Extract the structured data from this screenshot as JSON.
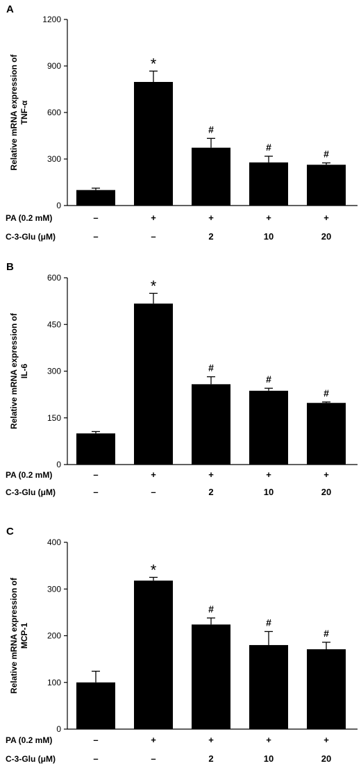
{
  "chart_data": [
    {
      "panel": "A",
      "type": "bar",
      "categories": [
        "1",
        "2",
        "3",
        "4",
        "5"
      ],
      "values": [
        100,
        797,
        373,
        278,
        263
      ],
      "errors": [
        12,
        70,
        60,
        40,
        12
      ],
      "annotations": [
        "",
        "*",
        "#",
        "#",
        "#"
      ],
      "ylabel": [
        "Relative mRNA expression of",
        "TNF-α"
      ],
      "ylim": [
        0,
        1200
      ],
      "yticks": [
        0,
        300,
        600,
        900,
        1200
      ],
      "conditions": [
        {
          "label": "PA (0.2 mM)",
          "values": [
            "–",
            "+",
            "+",
            "+",
            "+"
          ]
        },
        {
          "label": "C-3-Glu (μM)",
          "values": [
            "–",
            "–",
            "2",
            "10",
            "20"
          ]
        }
      ]
    },
    {
      "panel": "B",
      "type": "bar",
      "categories": [
        "1",
        "2",
        "3",
        "4",
        "5"
      ],
      "values": [
        100,
        517,
        258,
        237,
        198
      ],
      "errors": [
        6,
        33,
        24,
        8,
        3
      ],
      "annotations": [
        "",
        "*",
        "#",
        "#",
        "#"
      ],
      "ylabel": [
        "Relative mRNA expression of",
        "IL-6"
      ],
      "ylim": [
        0,
        600
      ],
      "yticks": [
        0,
        150,
        300,
        450,
        600
      ],
      "conditions": [
        {
          "label": "PA (0.2 mM)",
          "values": [
            "–",
            "+",
            "+",
            "+",
            "+"
          ]
        },
        {
          "label": "C-3-Glu (μM)",
          "values": [
            "–",
            "–",
            "2",
            "10",
            "20"
          ]
        }
      ]
    },
    {
      "panel": "C",
      "type": "bar",
      "categories": [
        "1",
        "2",
        "3",
        "4",
        "5"
      ],
      "values": [
        100,
        318,
        224,
        180,
        171
      ],
      "errors": [
        24,
        7,
        14,
        29,
        15
      ],
      "annotations": [
        "",
        "*",
        "#",
        "#",
        "#"
      ],
      "ylabel": [
        "Relative mRNA expression of",
        "MCP-1"
      ],
      "ylim": [
        0,
        400
      ],
      "yticks": [
        0,
        100,
        200,
        300,
        400
      ],
      "conditions": [
        {
          "label": "PA (0.2 mM)",
          "values": [
            "–",
            "+",
            "+",
            "+",
            "+"
          ]
        },
        {
          "label": "C-3-Glu (μM)",
          "values": [
            "–",
            "–",
            "2",
            "10",
            "20"
          ]
        }
      ]
    }
  ]
}
